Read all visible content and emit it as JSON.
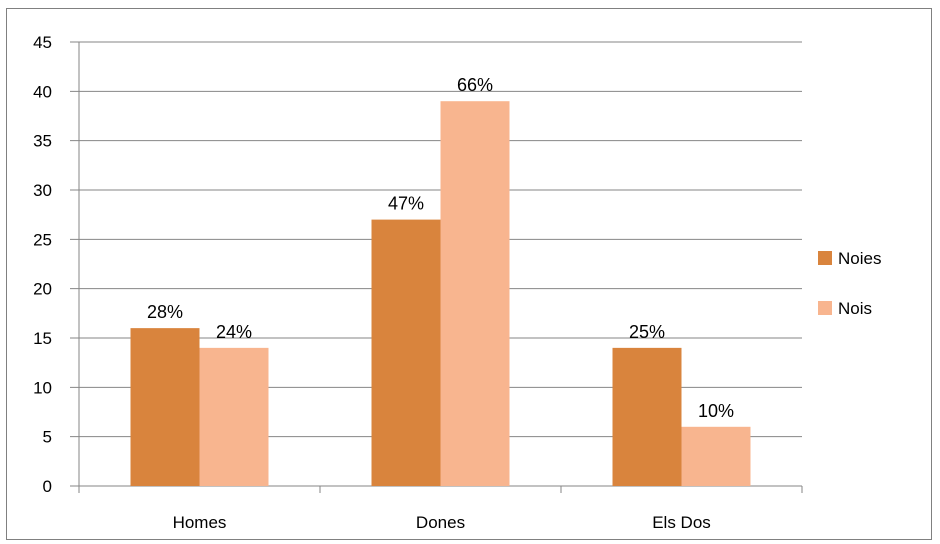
{
  "chart_data": {
    "type": "bar",
    "categories": [
      "Homes",
      "Dones",
      "Els Dos"
    ],
    "series": [
      {
        "name": "Noies",
        "values": [
          16,
          27,
          14
        ],
        "labels": [
          "28%",
          "47%",
          "25%"
        ],
        "color": "#D9843D"
      },
      {
        "name": "Nois",
        "values": [
          14,
          39,
          6
        ],
        "labels": [
          "24%",
          "66%",
          "10%"
        ],
        "color": "#F8B58F"
      }
    ],
    "ylim": [
      0,
      45
    ],
    "yticks": [
      0,
      5,
      10,
      15,
      20,
      25,
      30,
      35,
      40,
      45
    ],
    "grid": true,
    "legend_position": "right",
    "gridline_color": "#868686"
  }
}
